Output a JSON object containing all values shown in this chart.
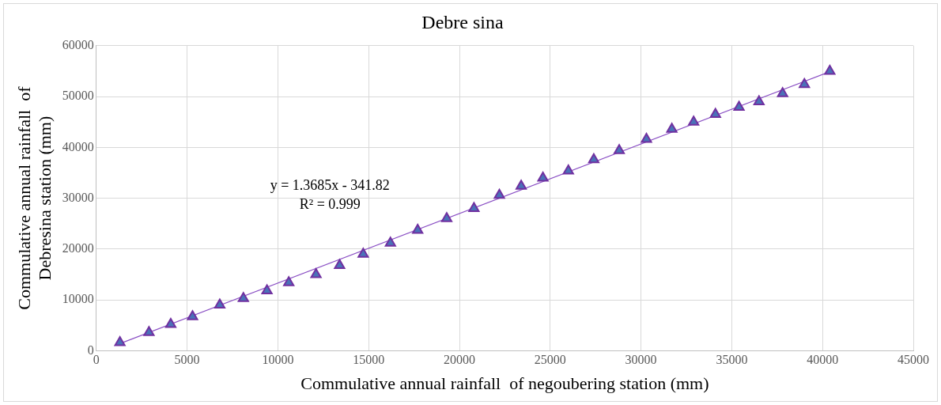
{
  "chart_data": {
    "type": "scatter",
    "title": "Debre sina",
    "xlabel": "Commulative annual rainfall  of negoubering station (mm)",
    "ylabel": "Commulative annual rainfall  of\nDebresina station (mm)",
    "x": [
      1300,
      2900,
      4100,
      5300,
      6800,
      8100,
      9400,
      10600,
      12100,
      13400,
      14700,
      16200,
      17700,
      19300,
      20800,
      22200,
      23400,
      24600,
      26000,
      27400,
      28800,
      30300,
      31700,
      32900,
      34100,
      35400,
      36500,
      37800,
      39000,
      40400
    ],
    "series": [
      {
        "color": "#4a72b8",
        "marker": "triangle",
        "values": [
          1600,
          3600,
          5200,
          6700,
          9000,
          10300,
          11800,
          13400,
          15000,
          16800,
          19000,
          21200,
          23700,
          26000,
          28000,
          30600,
          32400,
          34000,
          35400,
          37600,
          39400,
          41600,
          43600,
          45000,
          46500,
          47900,
          49000,
          50600,
          52400,
          55000
        ]
      },
      {
        "type": "line",
        "color": "#8a4fc4",
        "marker": "none",
        "x": [
          1300,
          40400
        ],
        "values": [
          1400,
          54900
        ]
      }
    ],
    "annotations": [
      "y = 1.3685x - 341.82",
      "R² = 0.999"
    ],
    "xlim": [
      0,
      45000
    ],
    "xticks": [
      0,
      5000,
      10000,
      15000,
      20000,
      25000,
      30000,
      35000,
      40000,
      45000
    ],
    "ylim": [
      0,
      60000
    ],
    "yticks": [
      0,
      10000,
      20000,
      30000,
      40000,
      50000,
      60000
    ],
    "grid": true,
    "legend": false
  }
}
